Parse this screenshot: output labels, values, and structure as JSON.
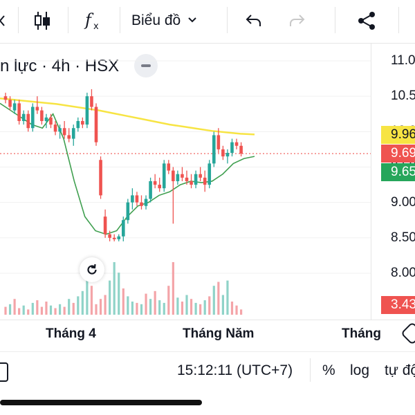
{
  "toolbar": {
    "chart_type_label": "Biểu đồ",
    "icons": [
      "candles-icon",
      "fx-icon",
      "chevron-down-icon",
      "undo-icon",
      "redo-icon",
      "share-icon"
    ]
  },
  "chart": {
    "title": "n lực · 4h · HSX",
    "price_ticks": [
      "11.0",
      "10.5",
      "10.0",
      "9.50",
      "9.00",
      "8.50",
      "8.00"
    ],
    "badges": {
      "ma_long": {
        "text": "9.96",
        "color": "#f7e443"
      },
      "last_price": {
        "text": "9.69",
        "color": "#ef5350"
      },
      "ma_short": {
        "text": "9.65",
        "color": "#26a65b"
      },
      "volume": {
        "text": "3.43",
        "color": "#ef5350"
      }
    },
    "time_labels": [
      "Tháng 4",
      "Tháng Năm",
      "Tháng"
    ],
    "colors": {
      "up": "#26a69a",
      "down": "#ef5350",
      "ma_long": "#f7e443",
      "ma_short": "#3f9f4f"
    }
  },
  "chart_data": {
    "type": "candlestick",
    "ylim": [
      8.0,
      11.0
    ],
    "price_levels": {
      "ma_long": 9.96,
      "last": 9.69,
      "ma_short": 9.65
    },
    "volume_last": 3.43,
    "candles": [
      [
        10.5,
        10.55,
        10.4,
        10.45
      ],
      [
        10.45,
        10.5,
        10.3,
        10.35
      ],
      [
        10.3,
        10.45,
        10.25,
        10.4
      ],
      [
        10.4,
        10.45,
        10.1,
        10.15
      ],
      [
        10.15,
        10.3,
        10.1,
        10.25
      ],
      [
        10.25,
        10.3,
        10.0,
        10.05
      ],
      [
        10.05,
        10.4,
        10.0,
        10.35
      ],
      [
        10.35,
        10.5,
        10.25,
        10.3
      ],
      [
        10.3,
        10.35,
        10.1,
        10.15
      ],
      [
        10.15,
        10.25,
        10.05,
        10.2
      ],
      [
        10.2,
        10.25,
        10.05,
        10.1
      ],
      [
        10.1,
        10.15,
        9.95,
        10.0
      ],
      [
        10.0,
        10.1,
        9.9,
        10.05
      ],
      [
        10.05,
        10.15,
        9.9,
        9.95
      ],
      [
        9.95,
        10.05,
        9.85,
        9.9
      ],
      [
        9.9,
        10.1,
        9.8,
        10.05
      ],
      [
        10.05,
        10.2,
        10.0,
        10.15
      ],
      [
        10.15,
        10.2,
        10.05,
        10.1
      ],
      [
        10.1,
        10.55,
        10.05,
        10.5
      ],
      [
        10.5,
        10.6,
        10.3,
        10.35
      ],
      [
        10.35,
        10.4,
        9.8,
        9.85
      ],
      [
        9.6,
        9.65,
        9.05,
        9.1
      ],
      [
        8.8,
        8.9,
        8.5,
        8.55
      ],
      [
        8.55,
        8.6,
        8.45,
        8.5
      ],
      [
        8.5,
        8.55,
        8.45,
        8.48
      ],
      [
        8.48,
        8.55,
        8.45,
        8.52
      ],
      [
        8.52,
        8.8,
        8.45,
        8.75
      ],
      [
        8.75,
        9.05,
        8.7,
        9.0
      ],
      [
        9.0,
        9.2,
        8.9,
        9.1
      ],
      [
        9.1,
        9.15,
        8.95,
        9.0
      ],
      [
        9.0,
        9.1,
        8.9,
        8.95
      ],
      [
        8.95,
        9.1,
        8.9,
        9.05
      ],
      [
        9.05,
        9.35,
        9.0,
        9.3
      ],
      [
        9.3,
        9.4,
        9.2,
        9.25
      ],
      [
        9.25,
        9.35,
        9.15,
        9.2
      ],
      [
        9.2,
        9.6,
        9.15,
        9.55
      ],
      [
        9.55,
        9.6,
        9.4,
        9.45
      ],
      [
        9.45,
        9.5,
        8.7,
        9.3
      ],
      [
        9.3,
        9.45,
        9.25,
        9.4
      ],
      [
        9.4,
        9.5,
        9.3,
        9.35
      ],
      [
        9.35,
        9.45,
        9.25,
        9.3
      ],
      [
        9.3,
        9.4,
        9.2,
        9.25
      ],
      [
        9.25,
        9.45,
        9.2,
        9.4
      ],
      [
        9.4,
        9.5,
        9.3,
        9.35
      ],
      [
        9.35,
        9.45,
        9.15,
        9.25
      ],
      [
        9.25,
        9.6,
        9.2,
        9.55
      ],
      [
        9.55,
        10.0,
        9.5,
        9.95
      ],
      [
        9.95,
        10.05,
        9.7,
        9.75
      ],
      [
        9.75,
        9.8,
        9.6,
        9.65
      ],
      [
        9.65,
        9.75,
        9.55,
        9.7
      ],
      [
        9.7,
        9.9,
        9.65,
        9.85
      ],
      [
        9.85,
        9.9,
        9.75,
        9.8
      ],
      [
        9.8,
        9.85,
        9.65,
        9.69
      ]
    ],
    "ma_long": [
      10.47,
      10.45,
      10.43,
      10.41,
      10.39,
      10.36,
      10.33,
      10.3,
      10.26,
      10.22,
      10.18,
      10.14,
      10.1,
      10.07,
      10.04,
      10.01,
      9.99,
      9.97,
      9.96
    ],
    "ma_short": [
      10.4,
      10.3,
      10.2,
      10.1,
      10.05,
      10.25,
      9.9,
      9.3,
      8.8,
      8.6,
      8.55,
      8.6,
      8.8,
      8.95,
      9.0,
      9.1,
      9.15,
      9.25,
      9.3,
      9.28,
      9.3,
      9.4,
      9.55,
      9.62,
      9.65
    ],
    "volumes": [
      [
        6,
        1
      ],
      [
        8,
        0
      ],
      [
        12,
        1
      ],
      [
        5,
        1
      ],
      [
        7,
        0
      ],
      [
        4,
        1
      ],
      [
        9,
        0
      ],
      [
        11,
        1
      ],
      [
        6,
        1
      ],
      [
        10,
        1
      ],
      [
        7,
        0
      ],
      [
        5,
        1
      ],
      [
        8,
        0
      ],
      [
        6,
        1
      ],
      [
        12,
        0
      ],
      [
        9,
        1
      ],
      [
        14,
        0
      ],
      [
        18,
        0
      ],
      [
        30,
        0
      ],
      [
        22,
        1
      ],
      [
        8,
        1
      ],
      [
        12,
        1
      ],
      [
        15,
        1
      ],
      [
        26,
        0
      ],
      [
        40,
        0
      ],
      [
        32,
        0
      ],
      [
        20,
        1
      ],
      [
        14,
        0
      ],
      [
        10,
        0
      ],
      [
        9,
        1
      ],
      [
        8,
        0
      ],
      [
        16,
        1
      ],
      [
        12,
        0
      ],
      [
        18,
        1
      ],
      [
        11,
        0
      ],
      [
        9,
        0
      ],
      [
        22,
        1
      ],
      [
        40,
        1
      ],
      [
        13,
        0
      ],
      [
        10,
        1
      ],
      [
        15,
        0
      ],
      [
        12,
        1
      ],
      [
        9,
        0
      ],
      [
        8,
        1
      ],
      [
        11,
        0
      ],
      [
        14,
        1
      ],
      [
        22,
        0
      ],
      [
        25,
        1
      ],
      [
        15,
        0
      ],
      [
        26,
        0
      ],
      [
        10,
        1
      ],
      [
        7,
        1
      ],
      [
        4,
        1
      ]
    ]
  },
  "bottom_bar": {
    "time": "15:12:11 (UTC+7)",
    "percent": "%",
    "log": "log",
    "auto": "tự độ"
  }
}
